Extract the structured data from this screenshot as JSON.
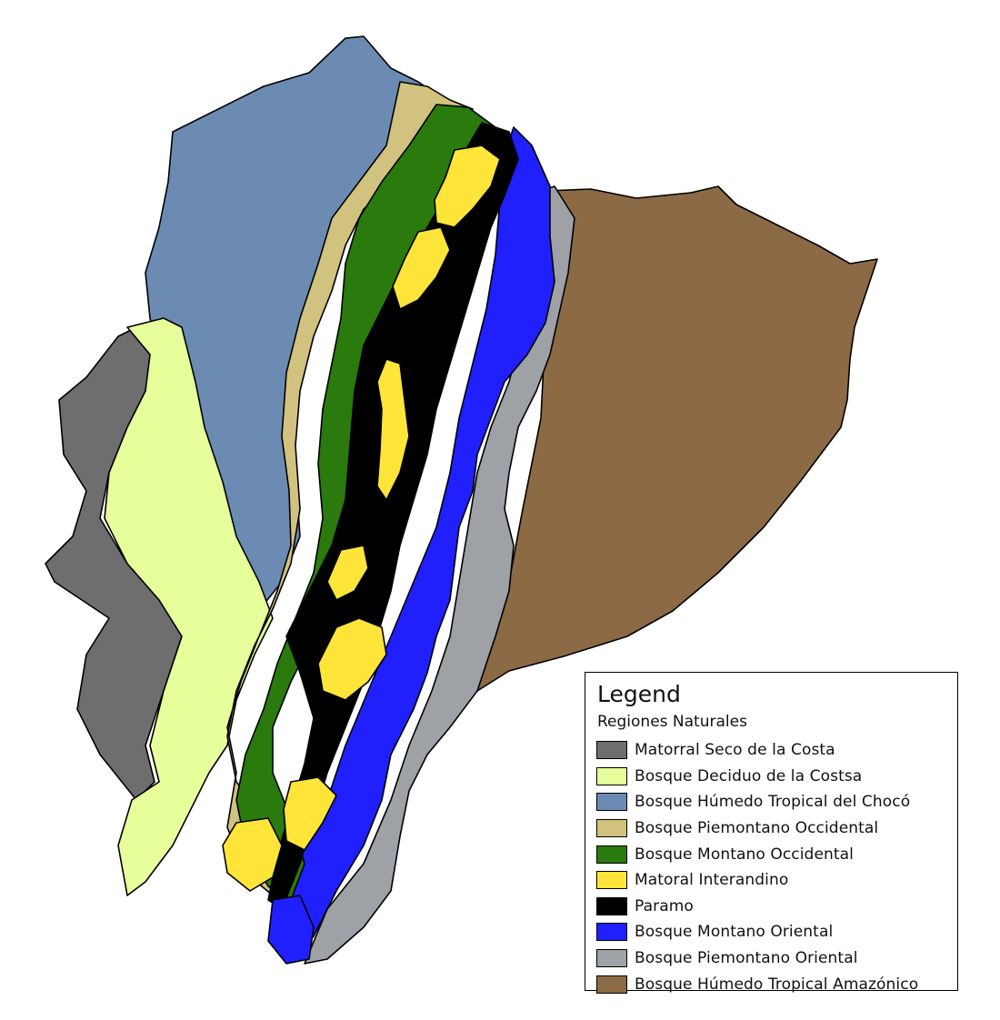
{
  "legend": {
    "title": "Legend",
    "subtitle": "Regiones Naturales",
    "items": [
      {
        "label": "Matorral Seco de la Costa",
        "color": "#6e6e6e"
      },
      {
        "label": "Bosque Deciduo de la Costsa",
        "color": "#e6ff9a"
      },
      {
        "label": "Bosque Húmedo Tropical del Chocó",
        "color": "#6b8bb2"
      },
      {
        "label": "Bosque Piemontano Occidental",
        "color": "#d2c27f"
      },
      {
        "label": "Bosque Montano Occidental",
        "color": "#2a7a0e"
      },
      {
        "label": "Matoral Interandino",
        "color": "#ffe53a"
      },
      {
        "label": "Paramo",
        "color": "#000000"
      },
      {
        "label": "Bosque Montano Oriental",
        "color": "#2020ff"
      },
      {
        "label": "Bosque Piemontano Oriental",
        "color": "#9ea1a6"
      },
      {
        "label": "Bosque Húmedo Tropical Amazónico",
        "color": "#8c6a45"
      }
    ]
  }
}
